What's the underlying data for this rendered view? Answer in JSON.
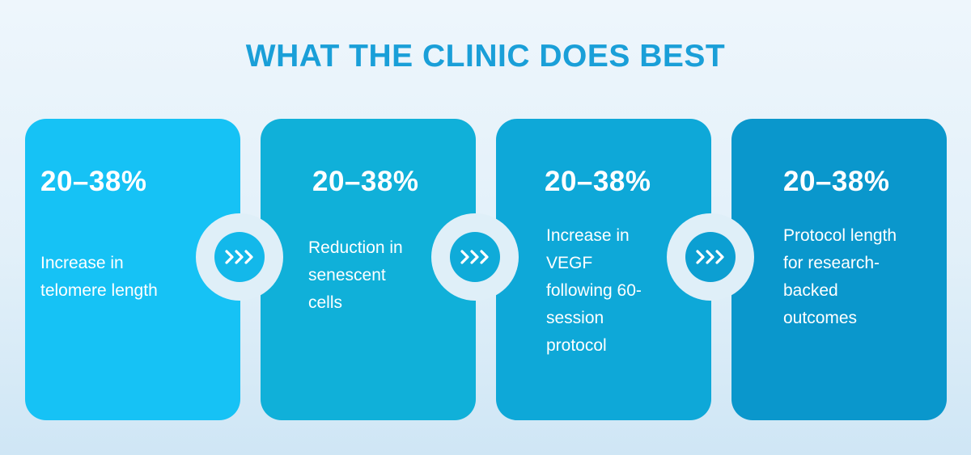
{
  "header": {
    "title": "WHAT THE CLINIC DOES BEST"
  },
  "cards": [
    {
      "stat": "20–38%",
      "description": "Increase in\ntelomere length"
    },
    {
      "stat": "20–38%",
      "description": "Reduction in\nsenescent\ncells"
    },
    {
      "stat": "20–38%",
      "description": "Increase in\nVEGF\nfollowing 60-\nsession\nprotocol"
    },
    {
      "stat": "20–38%",
      "description": "Protocol length\nfor research-\nbacked\noutcomes"
    }
  ],
  "connectors": [
    {
      "icon": "triple-chevron-right-icon"
    },
    {
      "icon": "triple-chevron-right-icon"
    },
    {
      "icon": "triple-chevron-right-icon"
    }
  ],
  "colors": {
    "title": "#1a9fd8",
    "card_1": "#16c2f5",
    "card_2": "#10b0d9",
    "card_3": "#0ea8d8",
    "card_4": "#0a97cc",
    "connector_ring": "#dfeff8"
  }
}
